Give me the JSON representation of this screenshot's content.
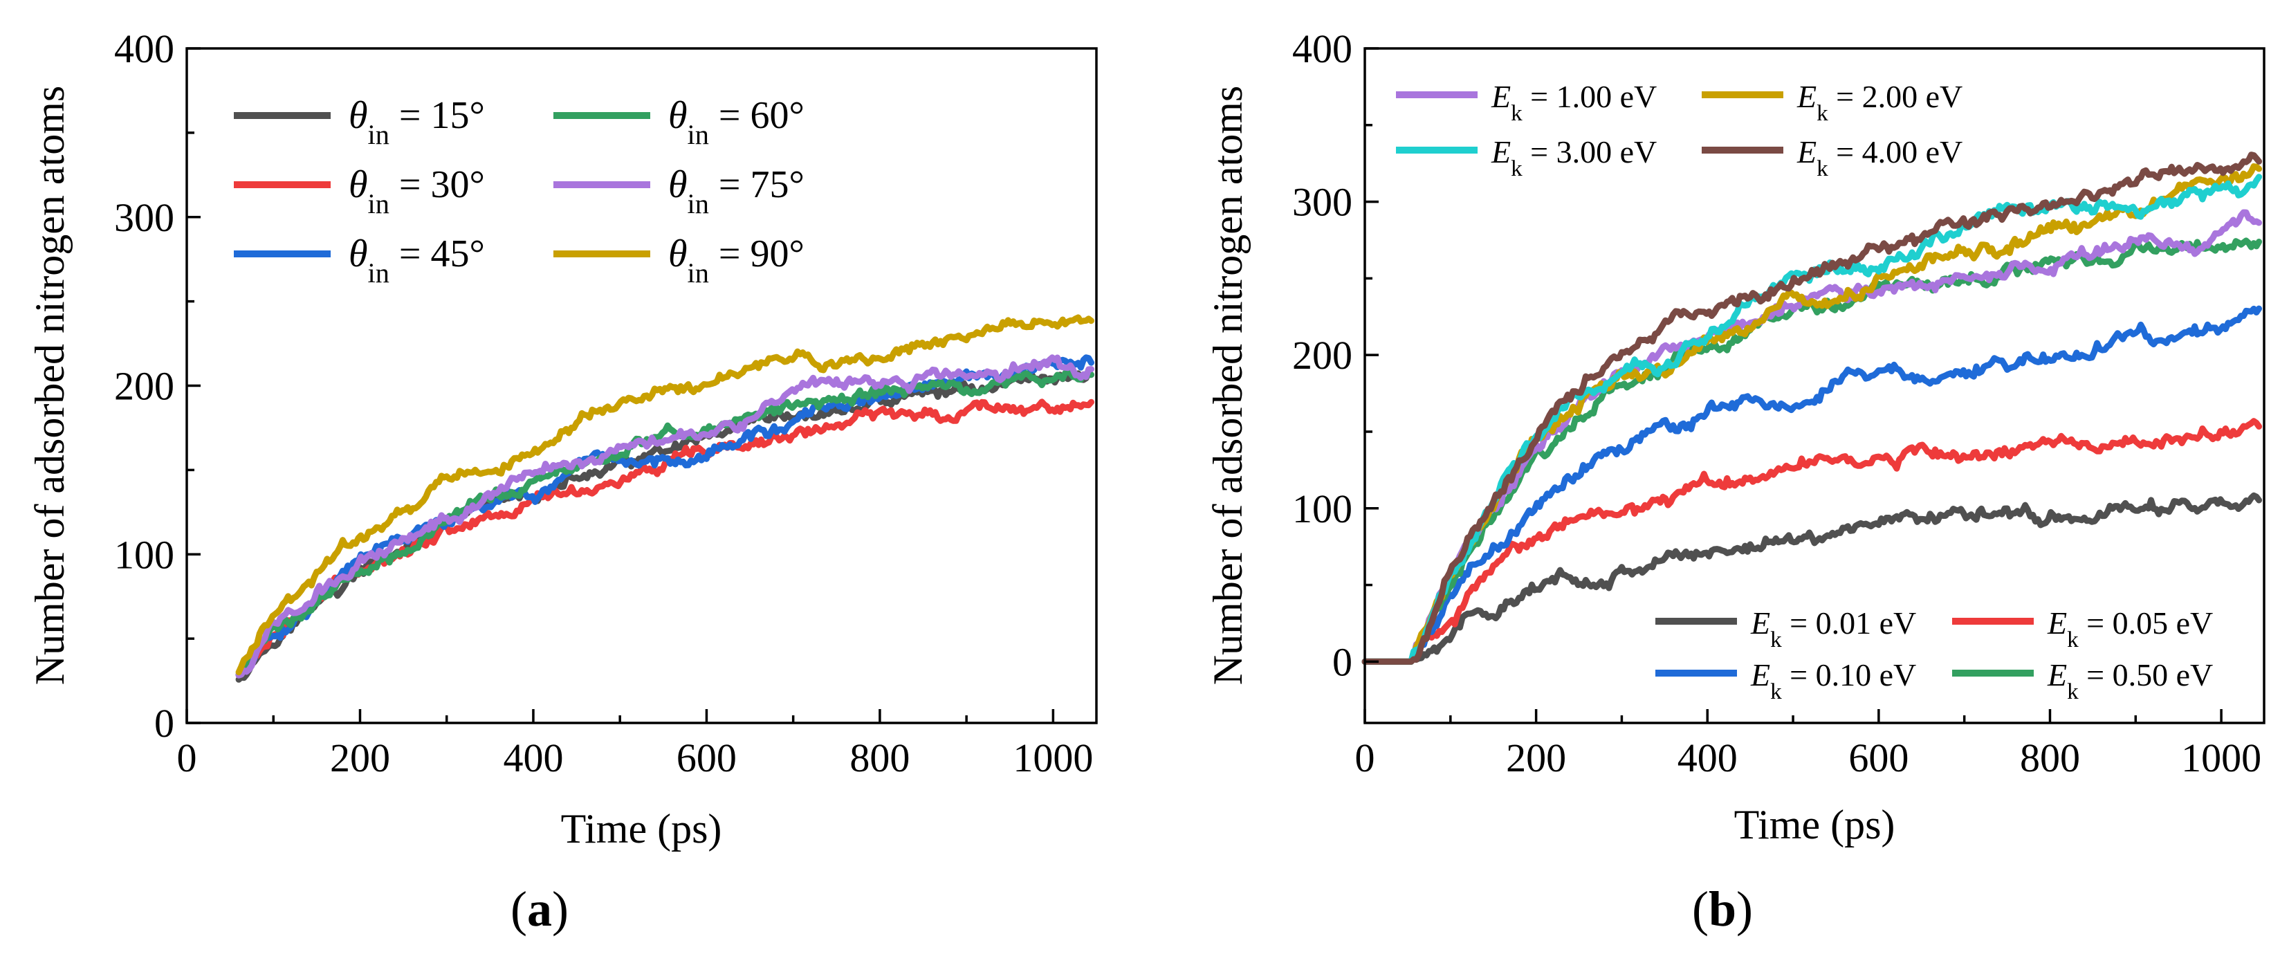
{
  "chart_data": [
    {
      "id": "a",
      "type": "line",
      "panel_label": "a",
      "title": "",
      "xlabel": "Time (ps)",
      "ylabel": "Number of adsorbed nitrogen atoms",
      "xlim": [
        0,
        1050
      ],
      "ylim": [
        0,
        400
      ],
      "xticks": [
        0,
        200,
        400,
        600,
        800,
        1000
      ],
      "yticks": [
        0,
        100,
        200,
        300,
        400
      ],
      "legend_position": "top-left",
      "legend_symbol": "θ",
      "legend_subscript": "in",
      "series": [
        {
          "name": "θin = 15°",
          "legend_value": "= 15°",
          "color": "#505050",
          "x": [
            60,
            100,
            150,
            200,
            250,
            300,
            350,
            400,
            450,
            500,
            550,
            600,
            650,
            700,
            750,
            800,
            850,
            900,
            950,
            1000,
            1045
          ],
          "y": [
            28,
            52,
            70,
            88,
            103,
            115,
            126,
            135,
            144,
            152,
            158,
            165,
            171,
            177,
            184,
            190,
            194,
            198,
            202,
            206,
            208
          ]
        },
        {
          "name": "θin = 30°",
          "legend_value": "= 30°",
          "color": "#ee3b3b",
          "x": [
            60,
            100,
            150,
            200,
            250,
            300,
            350,
            400,
            450,
            500,
            550,
            600,
            650,
            700,
            750,
            800,
            850,
            900,
            950,
            1000,
            1045
          ],
          "y": [
            28,
            54,
            72,
            92,
            106,
            116,
            124,
            132,
            139,
            145,
            150,
            157,
            163,
            170,
            177,
            181,
            185,
            186,
            190,
            188,
            190
          ]
        },
        {
          "name": "θin = 45°",
          "legend_value": "= 45°",
          "color": "#1f6bd8",
          "x": [
            60,
            100,
            150,
            200,
            250,
            300,
            350,
            400,
            450,
            500,
            550,
            600,
            650,
            700,
            750,
            800,
            850,
            900,
            950,
            1000,
            1045
          ],
          "y": [
            28,
            54,
            75,
            95,
            108,
            118,
            127,
            136,
            145,
            150,
            156,
            163,
            170,
            178,
            186,
            192,
            197,
            202,
            206,
            210,
            214
          ]
        },
        {
          "name": "θin = 60°",
          "legend_value": "= 60°",
          "color": "#33a060",
          "x": [
            60,
            100,
            150,
            200,
            250,
            300,
            350,
            400,
            450,
            500,
            550,
            600,
            650,
            700,
            750,
            800,
            850,
            900,
            950,
            1000,
            1045
          ],
          "y": [
            28,
            55,
            73,
            92,
            107,
            120,
            131,
            142,
            152,
            162,
            169,
            175,
            181,
            187,
            192,
            195,
            198,
            200,
            201,
            204,
            206
          ]
        },
        {
          "name": "θin = 75°",
          "legend_value": "= 75°",
          "color": "#a975dd",
          "x": [
            60,
            100,
            150,
            200,
            250,
            300,
            350,
            400,
            450,
            500,
            550,
            600,
            650,
            700,
            750,
            800,
            850,
            900,
            950,
            1000,
            1045
          ],
          "y": [
            28,
            58,
            76,
            94,
            110,
            124,
            136,
            148,
            157,
            165,
            171,
            176,
            184,
            192,
            198,
            201,
            204,
            206,
            210,
            213,
            212
          ]
        },
        {
          "name": "θin = 90°",
          "legend_value": "= 90°",
          "color": "#c9a000",
          "x": [
            60,
            100,
            150,
            200,
            250,
            300,
            350,
            400,
            450,
            500,
            550,
            600,
            650,
            700,
            750,
            800,
            850,
            900,
            950,
            1000,
            1045
          ],
          "y": [
            30,
            63,
            87,
            110,
            126,
            143,
            152,
            162,
            175,
            188,
            200,
            198,
            210,
            214,
            210,
            217,
            225,
            230,
            235,
            240,
            241
          ]
        }
      ]
    },
    {
      "id": "b",
      "type": "line",
      "panel_label": "b",
      "title": "",
      "xlabel": "Time (ps)",
      "ylabel": "Number of adsorbed nitrogen atoms",
      "xlim": [
        0,
        1050
      ],
      "ylim": [
        -40,
        400
      ],
      "xticks": [
        0,
        200,
        400,
        600,
        800,
        1000
      ],
      "yticks": [
        0,
        100,
        200,
        300,
        400
      ],
      "legend_symbol": "E",
      "legend_subscript": "k",
      "legend_groups": [
        {
          "position": "top-left",
          "series_names": [
            "Ek = 1.00 eV",
            "Ek = 2.00 eV",
            "Ek = 3.00 eV",
            "Ek = 4.00 eV"
          ]
        },
        {
          "position": "bottom-right",
          "series_names": [
            "Ek = 0.01 eV",
            "Ek = 0.05 eV",
            "Ek = 0.10 eV",
            "Ek = 0.50 eV"
          ]
        }
      ],
      "series": [
        {
          "name": "Ek = 0.01 eV",
          "legend_value": "= 0.01 eV",
          "color": "#505050",
          "x": [
            0,
            55,
            100,
            150,
            200,
            250,
            300,
            350,
            400,
            450,
            500,
            550,
            600,
            650,
            700,
            750,
            800,
            850,
            900,
            950,
            1000,
            1045
          ],
          "y": [
            0,
            0,
            22,
            35,
            46,
            54,
            61,
            67,
            72,
            77,
            82,
            86,
            92,
            95,
            96,
            97,
            98,
            99,
            100,
            101,
            102,
            104
          ]
        },
        {
          "name": "Ek = 0.05 eV",
          "legend_value": "= 0.05 eV",
          "color": "#ee3b3b",
          "x": [
            0,
            55,
            100,
            150,
            200,
            250,
            300,
            350,
            400,
            450,
            500,
            550,
            600,
            650,
            700,
            750,
            800,
            850,
            900,
            950,
            1000,
            1045
          ],
          "y": [
            0,
            0,
            30,
            60,
            80,
            95,
            104,
            110,
            115,
            120,
            124,
            128,
            132,
            135,
            137,
            139,
            141,
            143,
            145,
            147,
            148,
            150
          ]
        },
        {
          "name": "Ek = 0.10 eV",
          "legend_value": "= 0.10 eV",
          "color": "#1f6bd8",
          "x": [
            0,
            55,
            100,
            150,
            200,
            250,
            300,
            350,
            400,
            450,
            500,
            550,
            600,
            650,
            700,
            750,
            800,
            850,
            900,
            950,
            1000,
            1045
          ],
          "y": [
            0,
            0,
            40,
            75,
            105,
            127,
            142,
            152,
            162,
            170,
            176,
            182,
            190,
            192,
            190,
            196,
            200,
            205,
            212,
            210,
            215,
            225
          ]
        },
        {
          "name": "Ek = 0.50 eV",
          "legend_value": "= 0.50 eV",
          "color": "#33a060",
          "x": [
            0,
            55,
            100,
            150,
            200,
            250,
            300,
            350,
            400,
            450,
            500,
            550,
            600,
            650,
            700,
            750,
            800,
            850,
            900,
            950,
            1000,
            1045
          ],
          "y": [
            0,
            0,
            50,
            95,
            130,
            158,
            180,
            196,
            208,
            220,
            230,
            238,
            245,
            248,
            252,
            256,
            259,
            262,
            265,
            268,
            270,
            275
          ]
        },
        {
          "name": "Ek = 1.00 eV",
          "legend_value": "= 1.00 eV",
          "color": "#a975dd",
          "x": [
            0,
            55,
            100,
            150,
            200,
            250,
            300,
            350,
            400,
            450,
            500,
            550,
            600,
            650,
            700,
            750,
            800,
            850,
            900,
            950,
            1000,
            1045
          ],
          "y": [
            0,
            0,
            52,
            100,
            138,
            166,
            186,
            200,
            212,
            223,
            232,
            240,
            245,
            248,
            252,
            257,
            262,
            265,
            268,
            272,
            276,
            286
          ]
        },
        {
          "name": "Ek = 2.00 eV",
          "legend_value": "= 2.00 eV",
          "color": "#c9a000",
          "x": [
            0,
            55,
            100,
            150,
            200,
            250,
            300,
            350,
            400,
            450,
            500,
            550,
            600,
            650,
            700,
            750,
            800,
            850,
            900,
            950,
            1000,
            1045
          ],
          "y": [
            0,
            0,
            55,
            104,
            143,
            171,
            190,
            190,
            208,
            225,
            238,
            238,
            255,
            262,
            270,
            275,
            280,
            288,
            295,
            302,
            310,
            318
          ]
        },
        {
          "name": "Ek = 3.00 eV",
          "legend_value": "= 3.00 eV",
          "color": "#1fcfcf",
          "x": [
            0,
            55,
            100,
            150,
            200,
            250,
            300,
            350,
            400,
            450,
            500,
            550,
            600,
            650,
            700,
            750,
            800,
            850,
            900,
            950,
            1000,
            1045
          ],
          "y": [
            0,
            0,
            55,
            105,
            145,
            175,
            195,
            200,
            216,
            230,
            245,
            253,
            262,
            272,
            282,
            290,
            295,
            298,
            302,
            306,
            310,
            310
          ]
        },
        {
          "name": "Ek = 4.00 eV",
          "legend_value": "= 4.00 eV",
          "color": "#7a4a44",
          "x": [
            0,
            55,
            100,
            150,
            200,
            250,
            300,
            350,
            400,
            450,
            500,
            550,
            600,
            650,
            700,
            750,
            800,
            850,
            900,
            950,
            1000,
            1045
          ],
          "y": [
            0,
            0,
            58,
            110,
            150,
            182,
            205,
            220,
            230,
            240,
            250,
            256,
            265,
            275,
            285,
            295,
            303,
            308,
            312,
            318,
            322,
            328
          ]
        }
      ]
    }
  ]
}
